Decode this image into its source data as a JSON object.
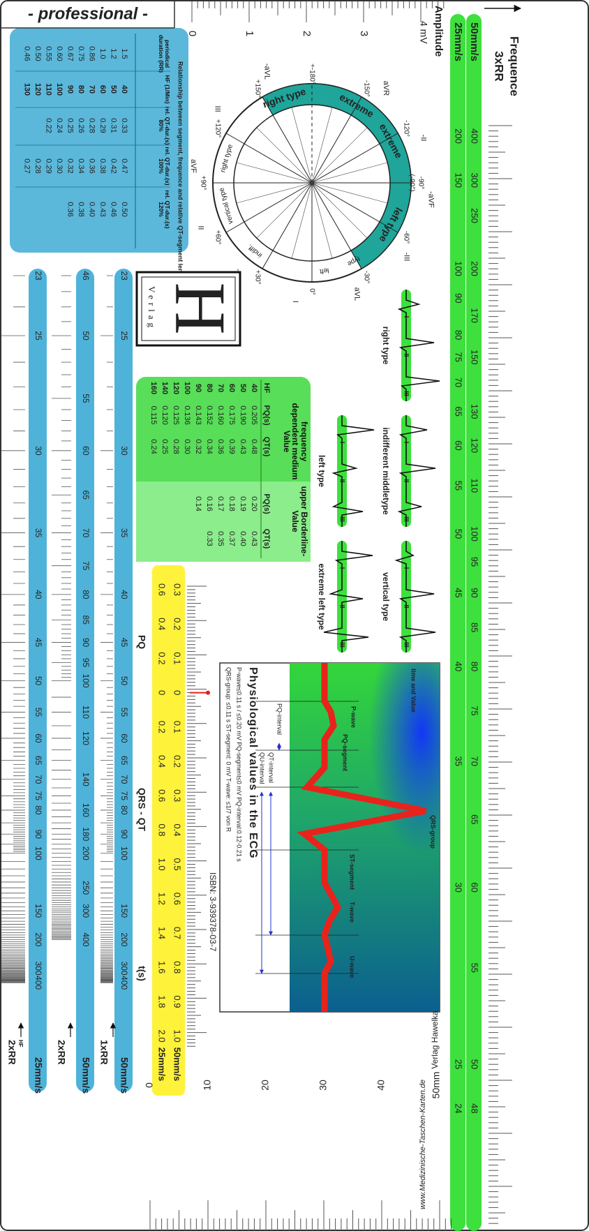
{
  "header": {
    "badge": "- professional -"
  },
  "frequency_ruler": {
    "title": "Frequence",
    "subtitle": "3xRR",
    "bars": [
      {
        "speed": "50mm/s",
        "labels": [
          400,
          300,
          250,
          200,
          170,
          150,
          130,
          120,
          110,
          100,
          95,
          90,
          85,
          80,
          75,
          70,
          65,
          60,
          55,
          50,
          48
        ]
      },
      {
        "speed": "25mm/s",
        "labels": [
          200,
          150,
          100,
          90,
          80,
          75,
          70,
          65,
          60,
          55,
          50,
          45,
          40,
          35,
          30,
          25,
          24
        ]
      }
    ]
  },
  "amplitude_ruler": {
    "title": "Amplitude",
    "unit_label": "4 mV",
    "labels": [
      0,
      1,
      2,
      3
    ]
  },
  "qt_table": {
    "title": "Relationship between segment, frequence and relative QT-segment lenght",
    "columns": [
      "periodical duration (RR)",
      "HF (1/Min)",
      "rel. QT-dur.(s) 80%",
      "rel. QT-dur.(s) 100%",
      "rel. QT-dur.(s) 120%"
    ],
    "rows": [
      [
        "1.5",
        "40",
        "0.33",
        "0.47",
        "0.50"
      ],
      [
        "1.2",
        "50",
        "0.31",
        "0.42",
        "0.46"
      ],
      [
        "1.0",
        "60",
        "0.29",
        "0.38",
        "0.43"
      ],
      [
        "0.86",
        "70",
        "0.28",
        "0.36",
        "0.40"
      ],
      [
        "0.75",
        "80",
        "0.26",
        "0.34",
        "0.38"
      ],
      [
        "0.67",
        "90",
        "0.25",
        "0.32",
        "0.36"
      ],
      [
        "0.60",
        "100",
        "0.24",
        "0.30",
        null
      ],
      [
        "0.55",
        "110",
        "0.22",
        "0.29",
        null
      ],
      [
        "0.50",
        "120",
        null,
        "0.28",
        null
      ],
      [
        "0.46",
        "130",
        null,
        "0.27",
        null
      ]
    ]
  },
  "axis_circle": {
    "axes": [
      {
        "degree": "0°",
        "lead": "I"
      },
      {
        "degree": "+30°",
        "lead": "-aVR"
      },
      {
        "degree": "+60°",
        "lead": "II"
      },
      {
        "degree": "+90°",
        "lead": "aVF"
      },
      {
        "degree": "+120°",
        "lead": "III"
      },
      {
        "degree": "+150°",
        "lead": "-aVL"
      },
      {
        "degree": "+-180°"
      },
      {
        "degree": "-150°",
        "lead": "aVR"
      },
      {
        "degree": "-120°",
        "lead": "-II"
      },
      {
        "degree": "-90°",
        "lead": "-aVF",
        "alt_degree": "(-90°)"
      },
      {
        "degree": "-60°",
        "lead": "-III"
      },
      {
        "degree": "-30°",
        "lead": "aVL"
      }
    ],
    "ring_labels": [
      "right type",
      "extreme",
      "extreme",
      "left type",
      "type",
      "left",
      "indiff.",
      "vertical type",
      "right type"
    ]
  },
  "publisher": {
    "logo": "H",
    "name": "Verlag"
  },
  "ecg_types": {
    "lead_names": [
      "I",
      "II",
      "III"
    ],
    "types": [
      "right type",
      "indifferent middletype",
      "left type",
      "vertical type",
      "extreme left type"
    ]
  },
  "value_table": {
    "title_left": "frequency dependent medium Value",
    "title_right": "upper Borderline-Value",
    "columns": [
      "HF",
      "PQ(s)",
      "QT(s)",
      "PQ(s)",
      "QT(s)"
    ],
    "rows": [
      [
        "40",
        "0.205",
        "0.48",
        "0.20",
        "0.43"
      ],
      [
        "50",
        "0.190",
        "0.43",
        "0.19",
        "0.40"
      ],
      [
        "60",
        "0.175",
        "0.39",
        "0.18",
        "0.37"
      ],
      [
        "70",
        "0.160",
        "0.36",
        "0.17",
        "0.35"
      ],
      [
        "80",
        "0.152",
        "0.34",
        "0.16",
        "0.33"
      ],
      [
        "90",
        "0.143",
        "0.32",
        "0.14",
        null
      ],
      [
        "100",
        "0.136",
        "0.30",
        null,
        null
      ],
      [
        "120",
        "0.125",
        "0.28",
        null,
        null
      ],
      [
        "140",
        "0.120",
        "0.25",
        null,
        null
      ],
      [
        "160",
        "0.115",
        "0.24",
        null,
        null
      ]
    ]
  },
  "pq_scale": {
    "rows": [
      {
        "speed": "50mm/s",
        "labels": [
          "0.3",
          "0.2",
          "0.1",
          "0",
          "0.1",
          "0.2",
          "0.3",
          "0.4",
          "0.5",
          "0.6",
          "0.7",
          "0.8",
          "0.9",
          "1.0"
        ]
      },
      {
        "speed": "25mm/s",
        "labels": [
          "0.6",
          "0.4",
          "0.2",
          "0",
          "0.2",
          "0.4",
          "0.6",
          "0.8",
          "1.0",
          "1.2",
          "1.4",
          "1.6",
          "1.8",
          "2.0"
        ]
      }
    ],
    "labels": [
      "PQ",
      "QRS - QT",
      "t(s)"
    ]
  },
  "physio": {
    "title": "Physiological values in the ECG",
    "lines": [
      "P-wave≤0.11 s / ≤0.20 mV PQ-segment≤0 mV PQ-interval:0.12-0.21 s",
      "QRS-group: ≤0.11 s ST-segment: 0 mV T-wave: ≤1/7 von R"
    ],
    "wave_labels": [
      "time and Value",
      "P-wave",
      "PQ-segment",
      "QRS-group",
      "ST-segment",
      "T-wave",
      "U-wave"
    ],
    "intervals": [
      "PQ-interval",
      "QT-interval",
      "QU-interval"
    ],
    "isbn": "ISBN: 3-939378-03-7",
    "publisher": "Verlag Hawelka",
    "website": "www.Medizinische-Taschen-Karten.de"
  },
  "rr_bars": {
    "hf_label": "HF",
    "bars": [
      {
        "name": "1xRR",
        "speed": "50mm/s",
        "labels": [
          23,
          25,
          30,
          35,
          40,
          45,
          50,
          55,
          60,
          65,
          70,
          75,
          80,
          90,
          100,
          150,
          200,
          300,
          400
        ]
      },
      {
        "name": "2xRR",
        "speed": "50mm/s",
        "labels": [
          46,
          50,
          55,
          60,
          65,
          70,
          75,
          80,
          85,
          90,
          95,
          100,
          110,
          120,
          140,
          160,
          180,
          200,
          250,
          300,
          400
        ]
      },
      {
        "name": "2xRR",
        "speed": "25mm/s",
        "labels": [
          23,
          25,
          30,
          35,
          40,
          45,
          50,
          55,
          60,
          65,
          70,
          75,
          80,
          90,
          100,
          150,
          200,
          300,
          400
        ]
      }
    ]
  },
  "mm_ruler": {
    "labels": [
      0,
      10,
      20,
      30,
      40
    ],
    "end_label": "50mm"
  }
}
